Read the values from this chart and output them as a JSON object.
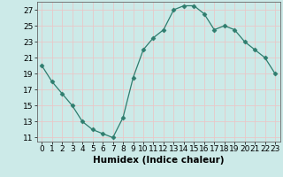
{
  "x": [
    0,
    1,
    2,
    3,
    4,
    5,
    6,
    7,
    8,
    9,
    10,
    11,
    12,
    13,
    14,
    15,
    16,
    17,
    18,
    19,
    20,
    21,
    22,
    23
  ],
  "y": [
    20,
    18,
    16.5,
    15,
    13,
    12,
    11.5,
    11,
    13.5,
    18.5,
    22,
    23.5,
    24.5,
    27,
    27.5,
    27.5,
    26.5,
    24.5,
    25,
    24.5,
    23,
    22,
    21,
    19
  ],
  "line_color": "#2e7d6e",
  "marker": "D",
  "marker_size": 2.5,
  "bg_color": "#cceae8",
  "grid_color": "#e8c8c8",
  "xlabel": "Humidex (Indice chaleur)",
  "ylim": [
    10.5,
    28
  ],
  "yticks": [
    11,
    13,
    15,
    17,
    19,
    21,
    23,
    25,
    27
  ],
  "xticks": [
    0,
    1,
    2,
    3,
    4,
    5,
    6,
    7,
    8,
    9,
    10,
    11,
    12,
    13,
    14,
    15,
    16,
    17,
    18,
    19,
    20,
    21,
    22,
    23
  ],
  "xlim": [
    -0.5,
    23.5
  ],
  "label_fontsize": 7.5,
  "tick_fontsize": 6.5
}
